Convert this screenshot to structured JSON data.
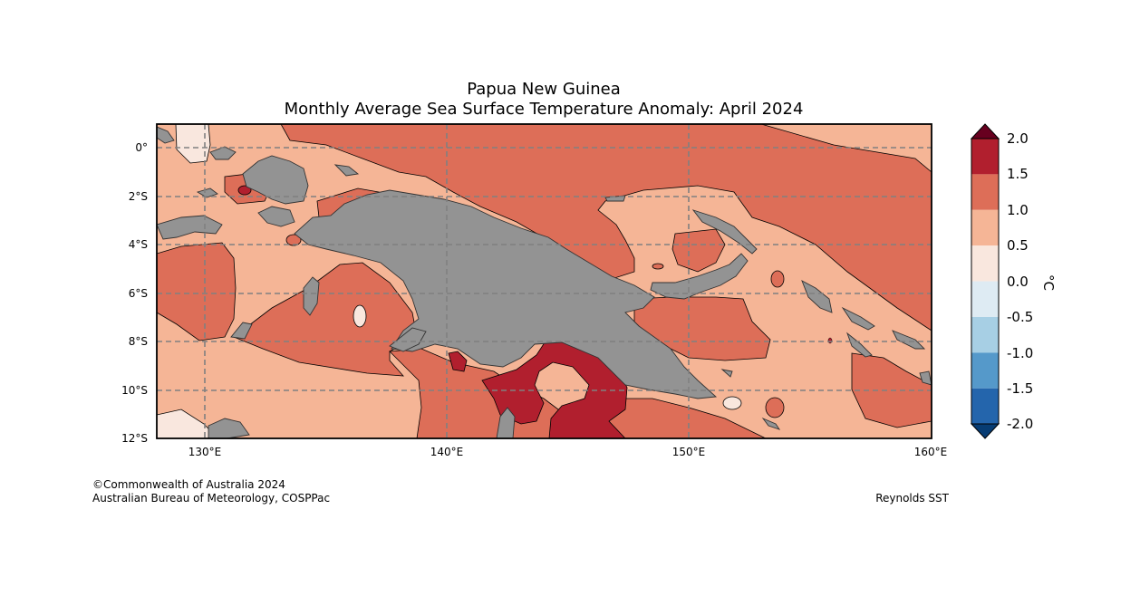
{
  "title": {
    "line1": "Papua New Guinea",
    "line2": "Monthly Average Sea Surface Temperature Anomaly: April 2024"
  },
  "footer": {
    "copyright": "©Commonwealth of Australia 2024",
    "agency": "Australian Bureau of Meteorology, COSPPac",
    "source": "Reynolds SST"
  },
  "map": {
    "lat_labels": [
      "0°",
      "2°S",
      "4°S",
      "6°S",
      "8°S",
      "10°S",
      "12°S"
    ],
    "lon_labels": [
      "130°E",
      "140°E",
      "150°E",
      "160°E"
    ],
    "lat_range": [
      "1°N",
      "12°S"
    ],
    "lon_range": [
      "128°E",
      "160°E"
    ],
    "gridlines": "dashed",
    "land_color": "#939393"
  },
  "colorbar": {
    "unit": "°C",
    "tick_labels": [
      "2.0",
      "1.5",
      "1.0",
      "0.5",
      "0.0",
      "-0.5",
      "-1.0",
      "-1.5",
      "-2.0"
    ],
    "colors": [
      "#b11f2e",
      "#dd6e58",
      "#f5b596",
      "#f9e7de",
      "#deebf3",
      "#a7cfe4",
      "#5599ca",
      "#2465ac"
    ],
    "over_color": "#67001f",
    "under_color": "#073c73"
  },
  "legend_colors": {
    "anom_0_05": "#f9e7de",
    "anom_05_10": "#f5b596",
    "anom_10_15": "#dd6e58",
    "anom_15_20": "#b11f2e"
  }
}
